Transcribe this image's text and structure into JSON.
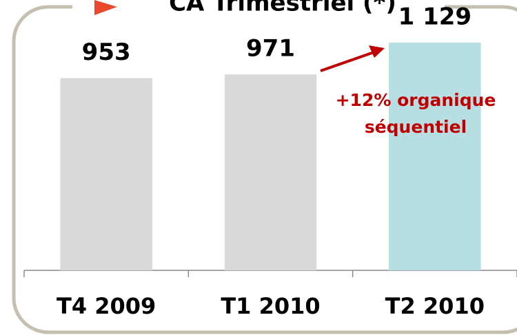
{
  "chart_data": {
    "type": "bar",
    "title": "CA Trimestriel (*)",
    "categories": [
      "T4 2009",
      "T1 2010",
      "T2 2010"
    ],
    "values": [
      953,
      971,
      1129
    ],
    "value_labels": [
      "953",
      "971",
      "1 129"
    ],
    "colors": [
      "#d9d9d9",
      "#d9d9d9",
      "#b7dfe3"
    ],
    "annotation": [
      "+12% organique",
      "séquentiel"
    ],
    "ylim": [
      0,
      1200
    ]
  }
}
